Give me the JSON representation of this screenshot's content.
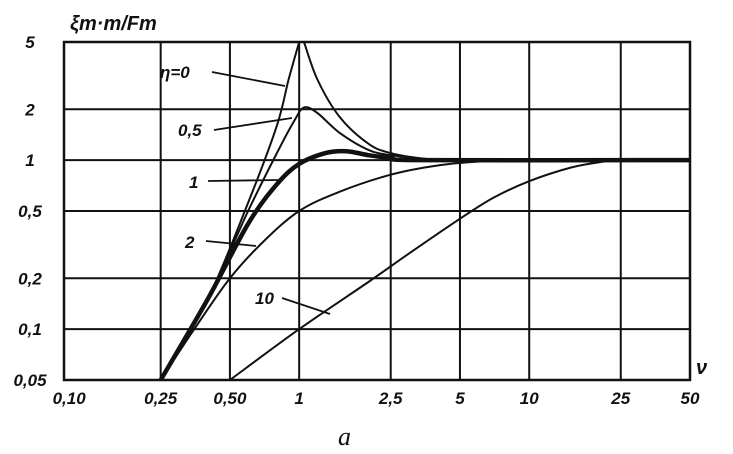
{
  "chart_data": {
    "type": "line",
    "ylabel": "ξm·m/Fm",
    "xlabel": "ν",
    "caption": "a",
    "xscale": "log",
    "yscale": "log",
    "xlim": [
      0.095,
      50
    ],
    "ylim": [
      0.05,
      5
    ],
    "grid": true,
    "x_ticks": [
      {
        "value": 0.1,
        "label": "0,10"
      },
      {
        "value": 0.25,
        "label": "0,25"
      },
      {
        "value": 0.5,
        "label": "0,50"
      },
      {
        "value": 1,
        "label": "1"
      },
      {
        "value": 2.5,
        "label": "2,5"
      },
      {
        "value": 5,
        "label": "5"
      },
      {
        "value": 10,
        "label": "10"
      },
      {
        "value": 25,
        "label": "25"
      },
      {
        "value": 50,
        "label": "50"
      }
    ],
    "y_ticks": [
      {
        "value": 0.05,
        "label": "0,05"
      },
      {
        "value": 0.1,
        "label": "0,1"
      },
      {
        "value": 0.2,
        "label": "0,2"
      },
      {
        "value": 0.5,
        "label": "0,5"
      },
      {
        "value": 1,
        "label": "1"
      },
      {
        "value": 2,
        "label": "2"
      },
      {
        "value": 5,
        "label": "5"
      }
    ],
    "series": [
      {
        "name": "η=0",
        "points": [
          [
            0.25,
            0.05
          ],
          [
            0.4,
            0.15
          ],
          [
            0.6,
            0.56
          ],
          [
            0.8,
            1.6
          ],
          [
            0.9,
            3.0
          ],
          [
            1.0,
            5.0
          ]
        ],
        "branch2": [
          [
            1.05,
            5.0
          ],
          [
            1.2,
            3.0
          ],
          [
            1.5,
            1.8
          ],
          [
            2.0,
            1.25
          ],
          [
            2.5,
            1.1
          ],
          [
            3.5,
            1.02
          ],
          [
            5,
            1.0
          ],
          [
            50,
            1.0
          ]
        ]
      },
      {
        "name": "0,5",
        "points": [
          [
            0.25,
            0.05
          ],
          [
            0.4,
            0.15
          ],
          [
            0.6,
            0.5
          ],
          [
            0.8,
            1.1
          ],
          [
            0.95,
            1.7
          ],
          [
            1.05,
            2.05
          ],
          [
            1.2,
            1.9
          ],
          [
            1.5,
            1.45
          ],
          [
            2.0,
            1.15
          ],
          [
            2.5,
            1.07
          ],
          [
            3.5,
            1.02
          ],
          [
            5,
            1.0
          ],
          [
            50,
            1.0
          ]
        ]
      },
      {
        "name": "1",
        "points": [
          [
            0.25,
            0.05
          ],
          [
            0.4,
            0.15
          ],
          [
            0.6,
            0.42
          ],
          [
            0.8,
            0.72
          ],
          [
            1.0,
            0.95
          ],
          [
            1.3,
            1.1
          ],
          [
            1.6,
            1.13
          ],
          [
            2.0,
            1.07
          ],
          [
            2.5,
            1.03
          ],
          [
            3.5,
            1.0
          ],
          [
            50,
            1.0
          ]
        ]
      },
      {
        "name": "2",
        "points": [
          [
            0.25,
            0.05
          ],
          [
            0.35,
            0.1
          ],
          [
            0.5,
            0.2
          ],
          [
            0.7,
            0.33
          ],
          [
            1.0,
            0.5
          ],
          [
            1.5,
            0.65
          ],
          [
            2.5,
            0.82
          ],
          [
            4,
            0.93
          ],
          [
            6,
            0.98
          ],
          [
            10,
            1.0
          ],
          [
            50,
            1.0
          ]
        ]
      },
      {
        "name": "10",
        "points": [
          [
            0.5,
            0.05
          ],
          [
            1.0,
            0.1
          ],
          [
            2.0,
            0.19
          ],
          [
            3.0,
            0.28
          ],
          [
            5.0,
            0.45
          ],
          [
            7.0,
            0.6
          ],
          [
            10,
            0.75
          ],
          [
            15,
            0.9
          ],
          [
            20,
            0.97
          ],
          [
            25,
            1.0
          ],
          [
            50,
            1.0
          ]
        ]
      }
    ]
  }
}
